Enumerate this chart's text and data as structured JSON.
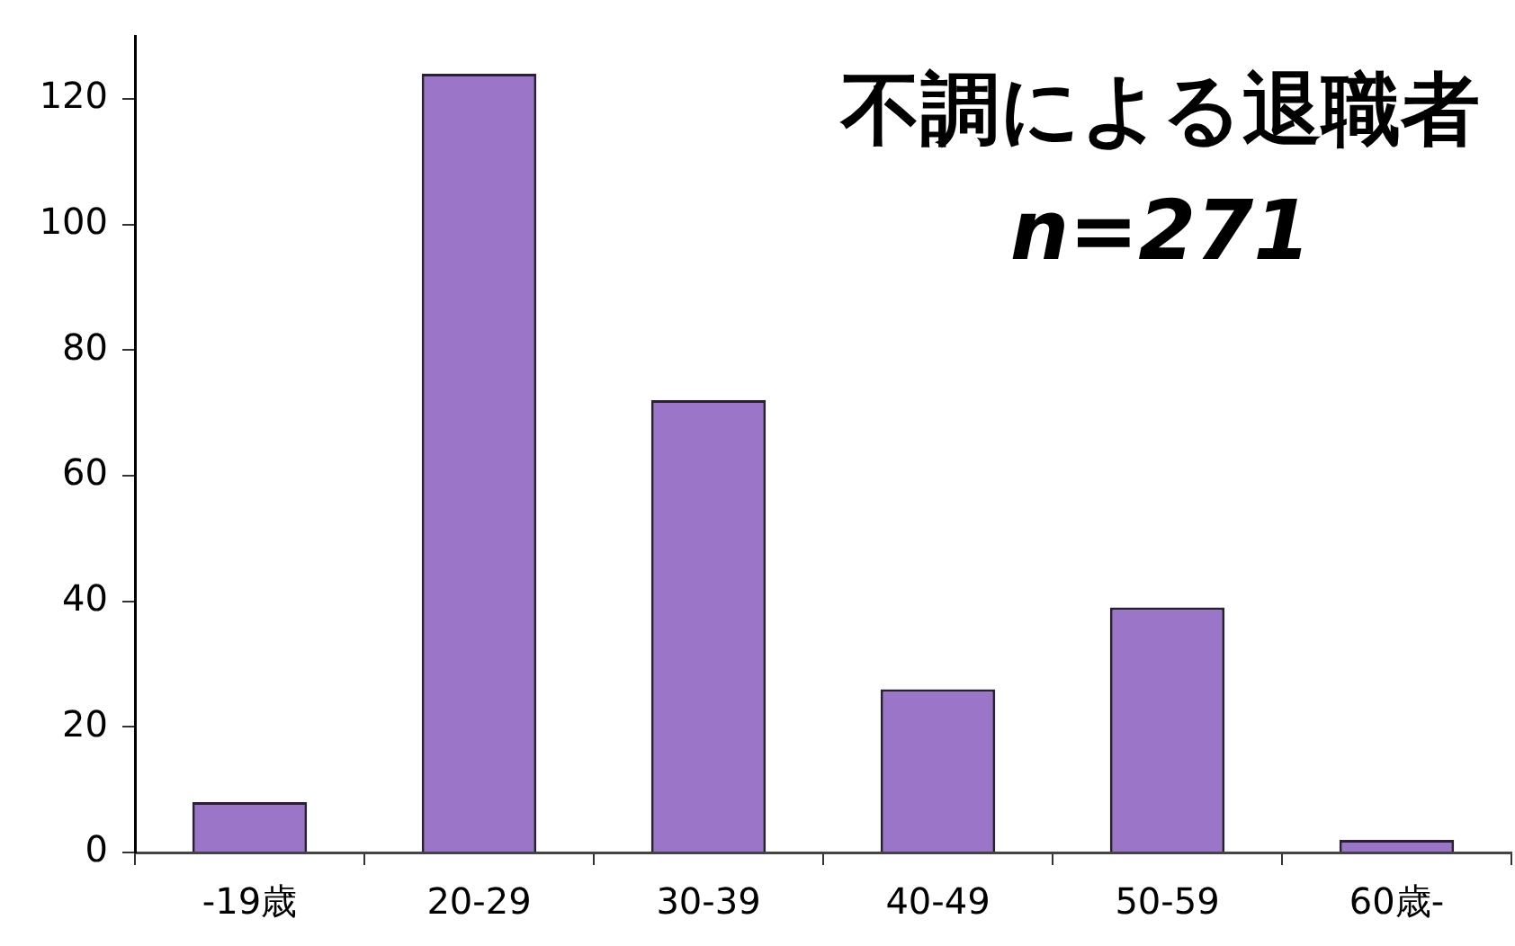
{
  "chart_data": {
    "type": "bar",
    "title": "不調による退職者",
    "subtitle": "n=271",
    "categories": [
      "-19歳",
      "20-29",
      "30-39",
      "40-49",
      "50-59",
      "60歳-"
    ],
    "values": [
      8,
      124,
      72,
      26,
      39,
      2
    ],
    "color": "#9b76c8",
    "ylim": [
      0,
      130
    ],
    "yticks": [
      0,
      20,
      40,
      60,
      80,
      100,
      120
    ]
  }
}
